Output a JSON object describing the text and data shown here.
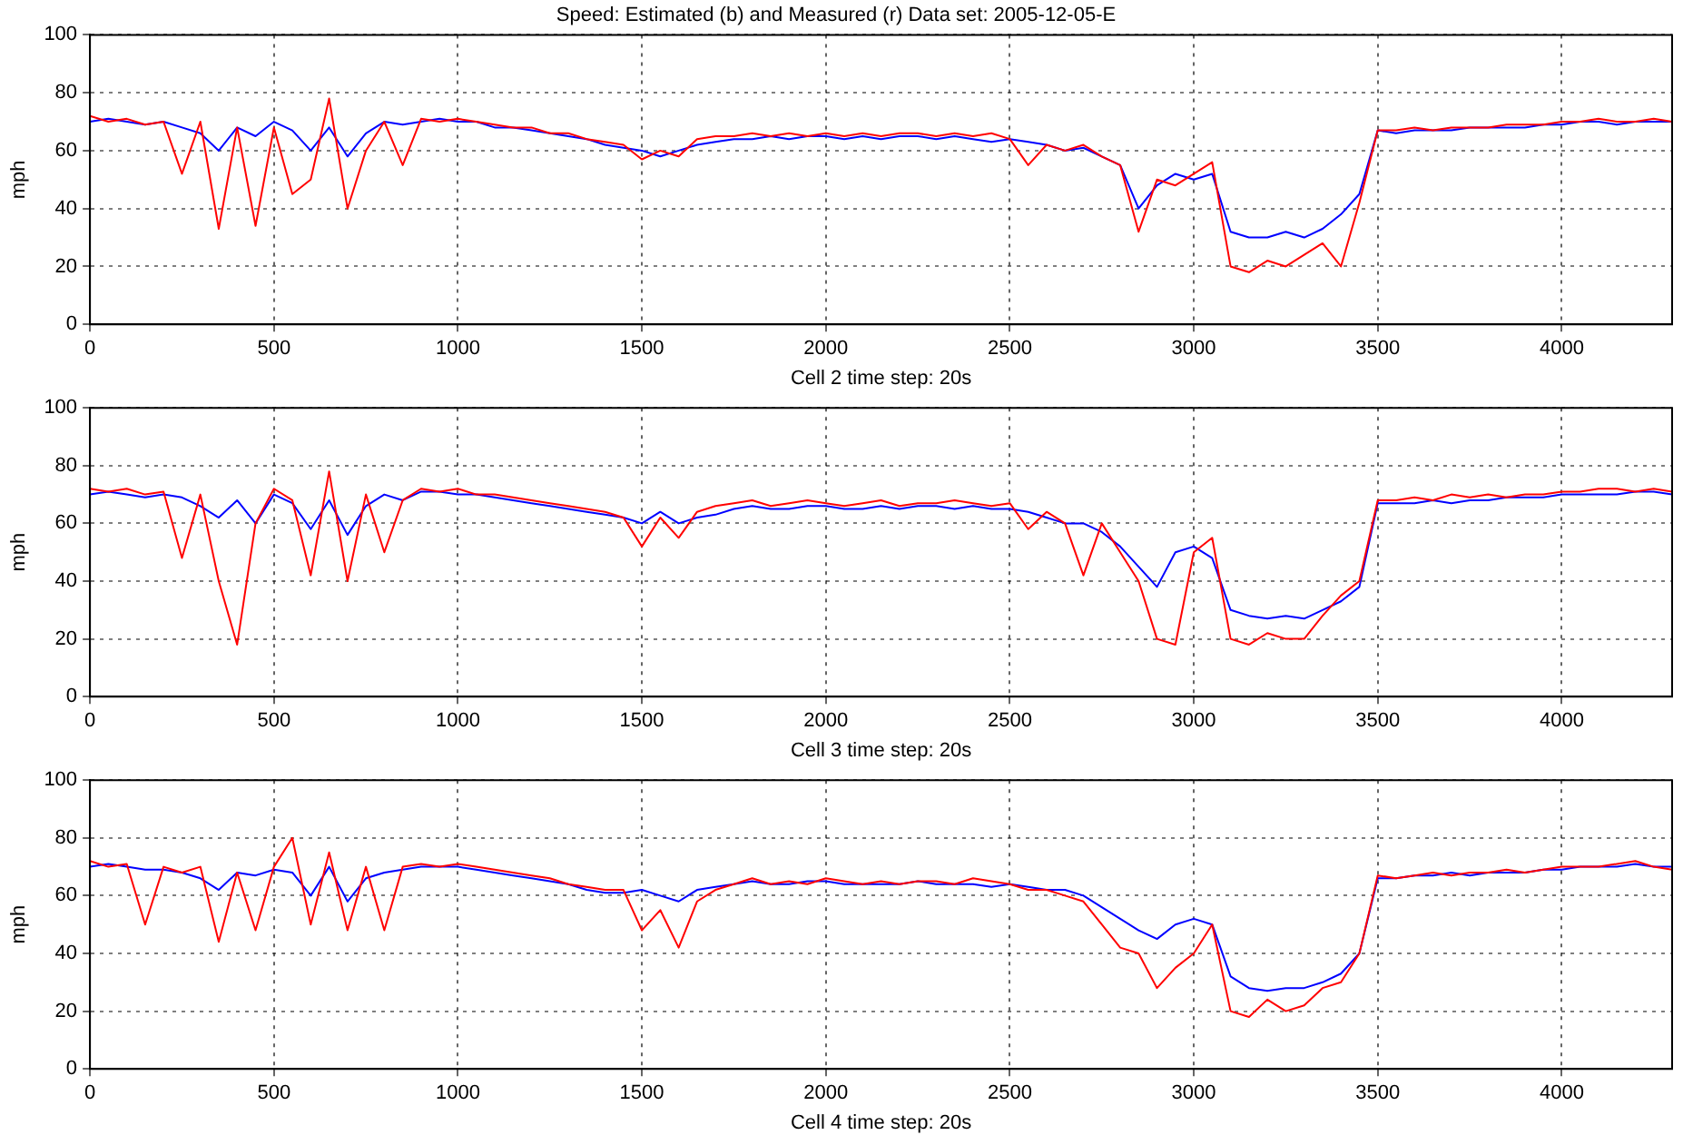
{
  "chart_data": [
    {
      "type": "line",
      "title": "Speed: Estimated (b) and Measured (r) Data set: 2005-12-05-E",
      "xlabel": "Cell 2 time step: 20s",
      "ylabel": "mph",
      "xlim": [
        0,
        4300
      ],
      "ylim": [
        0,
        100
      ],
      "xticks": [
        0,
        500,
        1000,
        1500,
        2000,
        2500,
        3000,
        3500,
        4000
      ],
      "yticks": [
        0,
        20,
        40,
        60,
        80,
        100
      ],
      "grid": true,
      "marker": "none",
      "x": [
        0,
        50,
        100,
        150,
        200,
        250,
        300,
        350,
        400,
        450,
        500,
        550,
        600,
        650,
        700,
        750,
        800,
        850,
        900,
        950,
        1000,
        1050,
        1100,
        1150,
        1200,
        1250,
        1300,
        1350,
        1400,
        1450,
        1500,
        1550,
        1600,
        1650,
        1700,
        1750,
        1800,
        1850,
        1900,
        1950,
        2000,
        2050,
        2100,
        2150,
        2200,
        2250,
        2300,
        2350,
        2400,
        2450,
        2500,
        2550,
        2600,
        2650,
        2700,
        2750,
        2800,
        2850,
        2900,
        2950,
        3000,
        3050,
        3100,
        3150,
        3200,
        3250,
        3300,
        3350,
        3400,
        3450,
        3500,
        3550,
        3600,
        3650,
        3700,
        3750,
        3800,
        3850,
        3900,
        3950,
        4000,
        4050,
        4100,
        4150,
        4200,
        4250,
        4300
      ],
      "series": [
        {
          "color": "#0000ff",
          "values": [
            70,
            71,
            70,
            69,
            70,
            68,
            66,
            60,
            68,
            65,
            70,
            67,
            60,
            68,
            58,
            66,
            70,
            69,
            70,
            71,
            70,
            70,
            68,
            68,
            67,
            66,
            65,
            64,
            62,
            61,
            60,
            58,
            60,
            62,
            63,
            64,
            64,
            65,
            64,
            65,
            65,
            64,
            65,
            64,
            65,
            65,
            64,
            65,
            64,
            63,
            64,
            63,
            62,
            60,
            61,
            58,
            55,
            40,
            48,
            52,
            50,
            52,
            32,
            30,
            30,
            32,
            30,
            33,
            38,
            45,
            67,
            66,
            67,
            67,
            67,
            68,
            68,
            68,
            68,
            69,
            69,
            70,
            70,
            69,
            70,
            70,
            70
          ]
        },
        {
          "color": "#ff0000",
          "values": [
            72,
            70,
            71,
            69,
            70,
            52,
            70,
            33,
            68,
            34,
            68,
            45,
            50,
            78,
            40,
            60,
            70,
            55,
            71,
            70,
            71,
            70,
            69,
            68,
            68,
            66,
            66,
            64,
            63,
            62,
            57,
            60,
            58,
            64,
            65,
            65,
            66,
            65,
            66,
            65,
            66,
            65,
            66,
            65,
            66,
            66,
            65,
            66,
            65,
            66,
            64,
            55,
            62,
            60,
            62,
            58,
            55,
            32,
            50,
            48,
            52,
            56,
            20,
            18,
            22,
            20,
            24,
            28,
            20,
            42,
            67,
            67,
            68,
            67,
            68,
            68,
            68,
            69,
            69,
            69,
            70,
            70,
            71,
            70,
            70,
            71,
            70
          ]
        }
      ]
    },
    {
      "type": "line",
      "xlabel": "Cell 3 time step: 20s",
      "ylabel": "mph",
      "xlim": [
        0,
        4300
      ],
      "ylim": [
        0,
        100
      ],
      "xticks": [
        0,
        500,
        1000,
        1500,
        2000,
        2500,
        3000,
        3500,
        4000
      ],
      "yticks": [
        0,
        20,
        40,
        60,
        80,
        100
      ],
      "grid": true,
      "marker": "none",
      "x": [
        0,
        50,
        100,
        150,
        200,
        250,
        300,
        350,
        400,
        450,
        500,
        550,
        600,
        650,
        700,
        750,
        800,
        850,
        900,
        950,
        1000,
        1050,
        1100,
        1150,
        1200,
        1250,
        1300,
        1350,
        1400,
        1450,
        1500,
        1550,
        1600,
        1650,
        1700,
        1750,
        1800,
        1850,
        1900,
        1950,
        2000,
        2050,
        2100,
        2150,
        2200,
        2250,
        2300,
        2350,
        2400,
        2450,
        2500,
        2550,
        2600,
        2650,
        2700,
        2750,
        2800,
        2850,
        2900,
        2950,
        3000,
        3050,
        3100,
        3150,
        3200,
        3250,
        3300,
        3350,
        3400,
        3450,
        3500,
        3550,
        3600,
        3650,
        3700,
        3750,
        3800,
        3850,
        3900,
        3950,
        4000,
        4050,
        4100,
        4150,
        4200,
        4250,
        4300
      ],
      "series": [
        {
          "color": "#0000ff",
          "values": [
            70,
            71,
            70,
            69,
            70,
            69,
            66,
            62,
            68,
            60,
            70,
            67,
            58,
            68,
            56,
            66,
            70,
            68,
            71,
            71,
            70,
            70,
            69,
            68,
            67,
            66,
            65,
            64,
            63,
            62,
            60,
            64,
            60,
            62,
            63,
            65,
            66,
            65,
            65,
            66,
            66,
            65,
            65,
            66,
            65,
            66,
            66,
            65,
            66,
            65,
            65,
            64,
            62,
            60,
            60,
            57,
            52,
            45,
            38,
            50,
            52,
            48,
            30,
            28,
            27,
            28,
            27,
            30,
            33,
            38,
            67,
            67,
            67,
            68,
            67,
            68,
            68,
            69,
            69,
            69,
            70,
            70,
            70,
            70,
            71,
            71,
            70
          ]
        },
        {
          "color": "#ff0000",
          "values": [
            72,
            71,
            72,
            70,
            71,
            48,
            70,
            40,
            18,
            60,
            72,
            68,
            42,
            78,
            40,
            70,
            50,
            68,
            72,
            71,
            72,
            70,
            70,
            69,
            68,
            67,
            66,
            65,
            64,
            62,
            52,
            62,
            55,
            64,
            66,
            67,
            68,
            66,
            67,
            68,
            67,
            66,
            67,
            68,
            66,
            67,
            67,
            68,
            67,
            66,
            67,
            58,
            64,
            60,
            42,
            60,
            50,
            40,
            20,
            18,
            50,
            55,
            20,
            18,
            22,
            20,
            20,
            28,
            35,
            40,
            68,
            68,
            69,
            68,
            70,
            69,
            70,
            69,
            70,
            70,
            71,
            71,
            72,
            72,
            71,
            72,
            71
          ]
        }
      ]
    },
    {
      "type": "line",
      "xlabel": "Cell 4 time step: 20s",
      "ylabel": "mph",
      "xlim": [
        0,
        4300
      ],
      "ylim": [
        0,
        100
      ],
      "xticks": [
        0,
        500,
        1000,
        1500,
        2000,
        2500,
        3000,
        3500,
        4000
      ],
      "yticks": [
        0,
        20,
        40,
        60,
        80,
        100
      ],
      "grid": true,
      "marker": "none",
      "x": [
        0,
        50,
        100,
        150,
        200,
        250,
        300,
        350,
        400,
        450,
        500,
        550,
        600,
        650,
        700,
        750,
        800,
        850,
        900,
        950,
        1000,
        1050,
        1100,
        1150,
        1200,
        1250,
        1300,
        1350,
        1400,
        1450,
        1500,
        1550,
        1600,
        1650,
        1700,
        1750,
        1800,
        1850,
        1900,
        1950,
        2000,
        2050,
        2100,
        2150,
        2200,
        2250,
        2300,
        2350,
        2400,
        2450,
        2500,
        2550,
        2600,
        2650,
        2700,
        2750,
        2800,
        2850,
        2900,
        2950,
        3000,
        3050,
        3100,
        3150,
        3200,
        3250,
        3300,
        3350,
        3400,
        3450,
        3500,
        3550,
        3600,
        3650,
        3700,
        3750,
        3800,
        3850,
        3900,
        3950,
        4000,
        4050,
        4100,
        4150,
        4200,
        4250,
        4300
      ],
      "series": [
        {
          "color": "#0000ff",
          "values": [
            70,
            71,
            70,
            69,
            69,
            68,
            66,
            62,
            68,
            67,
            69,
            68,
            60,
            70,
            58,
            66,
            68,
            69,
            70,
            70,
            70,
            69,
            68,
            67,
            66,
            65,
            64,
            62,
            61,
            61,
            62,
            60,
            58,
            62,
            63,
            64,
            65,
            64,
            64,
            65,
            65,
            64,
            64,
            64,
            64,
            65,
            64,
            64,
            64,
            63,
            64,
            63,
            62,
            62,
            60,
            56,
            52,
            48,
            45,
            50,
            52,
            50,
            32,
            28,
            27,
            28,
            28,
            30,
            33,
            40,
            66,
            66,
            67,
            67,
            68,
            67,
            68,
            68,
            68,
            69,
            69,
            70,
            70,
            70,
            71,
            70,
            70
          ]
        },
        {
          "color": "#ff0000",
          "values": [
            72,
            70,
            71,
            50,
            70,
            68,
            70,
            44,
            68,
            48,
            70,
            80,
            50,
            75,
            48,
            70,
            48,
            70,
            71,
            70,
            71,
            70,
            69,
            68,
            67,
            66,
            64,
            63,
            62,
            62,
            48,
            55,
            42,
            58,
            62,
            64,
            66,
            64,
            65,
            64,
            66,
            65,
            64,
            65,
            64,
            65,
            65,
            64,
            66,
            65,
            64,
            62,
            62,
            60,
            58,
            50,
            42,
            40,
            28,
            35,
            40,
            50,
            20,
            18,
            24,
            20,
            22,
            28,
            30,
            40,
            67,
            66,
            67,
            68,
            67,
            68,
            68,
            69,
            68,
            69,
            70,
            70,
            70,
            71,
            72,
            70,
            69
          ]
        }
      ]
    }
  ]
}
